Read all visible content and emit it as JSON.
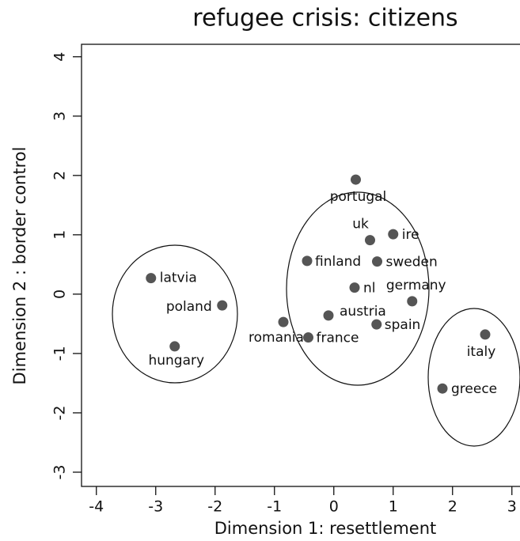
{
  "chart_data": {
    "type": "scatter",
    "title": "refugee crisis: citizens",
    "x_label": "Dimension 1: resettlement",
    "y_label": "Dimension 2 : border control",
    "point_labels": [
      "latvia",
      "poland",
      "hungary",
      "romania",
      "france",
      "austria",
      "finland",
      "nl",
      "sweden",
      "uk",
      "ire",
      "portugal",
      "germany",
      "spain",
      "italy",
      "greece"
    ],
    "x": [
      -3.08,
      -1.88,
      -2.68,
      -0.85,
      -0.43,
      -0.09,
      -0.45,
      0.35,
      0.73,
      0.61,
      1.0,
      0.37,
      1.32,
      0.72,
      2.55,
      1.83
    ],
    "y": [
      0.27,
      -0.19,
      -0.88,
      -0.47,
      -0.73,
      -0.36,
      0.56,
      0.11,
      0.55,
      0.91,
      1.01,
      1.93,
      -0.12,
      -0.51,
      -0.68,
      -1.59
    ],
    "color": "#555555",
    "xlim": [
      -4.25,
      3.15
    ],
    "ylim": [
      -3.24,
      4.21
    ],
    "xticks": [
      -4,
      -3,
      -2,
      -1,
      0,
      1,
      2,
      3
    ],
    "yticks": [
      -3,
      -2,
      -1,
      0,
      1,
      2,
      3,
      4
    ]
  }
}
